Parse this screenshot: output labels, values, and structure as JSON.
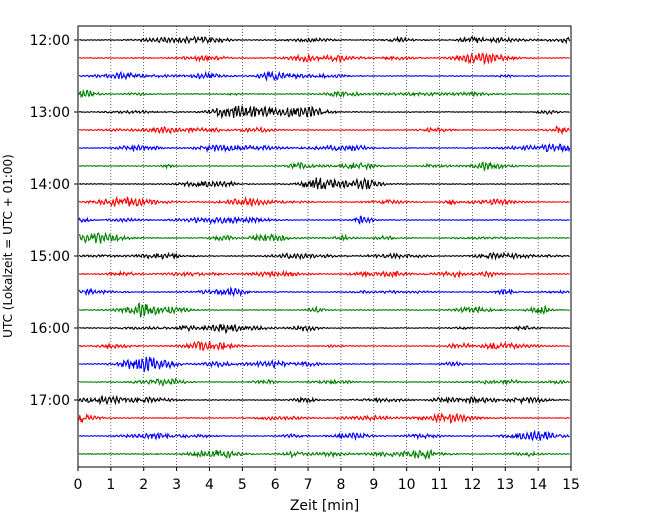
{
  "chart_data": {
    "type": "line",
    "title": "",
    "xlabel": "Zeit  [min]",
    "ylabel": "UTC (Lokalzeit = UTC + 01:00)",
    "xlim": [
      0,
      15
    ],
    "x_ticks": [
      "0",
      "1",
      "2",
      "3",
      "4",
      "5",
      "6",
      "7",
      "8",
      "9",
      "10",
      "11",
      "12",
      "13",
      "14",
      "15"
    ],
    "y_ticks": [
      "12:00",
      "13:00",
      "14:00",
      "15:00",
      "16:00",
      "17:00"
    ],
    "trace_interval_minutes": 15,
    "start_time": "12:00",
    "end_time": "17:45",
    "grid": "vertical dotted",
    "legend": "none",
    "trace_colors": [
      "#000000",
      "#ff0000",
      "#0000ff",
      "#008000"
    ],
    "series": [
      {
        "start": "12:00",
        "color": "#000000"
      },
      {
        "start": "12:15",
        "color": "#ff0000"
      },
      {
        "start": "12:30",
        "color": "#0000ff"
      },
      {
        "start": "12:45",
        "color": "#008000"
      },
      {
        "start": "13:00",
        "color": "#000000"
      },
      {
        "start": "13:15",
        "color": "#ff0000"
      },
      {
        "start": "13:30",
        "color": "#0000ff"
      },
      {
        "start": "13:45",
        "color": "#008000"
      },
      {
        "start": "14:00",
        "color": "#000000"
      },
      {
        "start": "14:15",
        "color": "#ff0000"
      },
      {
        "start": "14:30",
        "color": "#0000ff"
      },
      {
        "start": "14:45",
        "color": "#008000"
      },
      {
        "start": "15:00",
        "color": "#000000"
      },
      {
        "start": "15:15",
        "color": "#ff0000"
      },
      {
        "start": "15:30",
        "color": "#0000ff"
      },
      {
        "start": "15:45",
        "color": "#008000"
      },
      {
        "start": "16:00",
        "color": "#000000"
      },
      {
        "start": "16:15",
        "color": "#ff0000"
      },
      {
        "start": "16:30",
        "color": "#0000ff"
      },
      {
        "start": "16:45",
        "color": "#008000"
      },
      {
        "start": "17:00",
        "color": "#000000"
      },
      {
        "start": "17:15",
        "color": "#ff0000"
      },
      {
        "start": "17:30",
        "color": "#0000ff"
      },
      {
        "start": "17:45",
        "color": "#008000"
      }
    ]
  }
}
